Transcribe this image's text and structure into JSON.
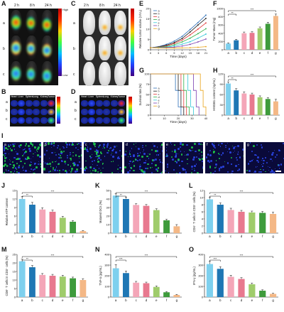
{
  "panels": {
    "A": "A",
    "B": "B",
    "C": "C",
    "D": "D",
    "E": "E",
    "F": "F",
    "G": "G",
    "H": "H",
    "I": "I",
    "J": "J",
    "K": "K",
    "L": "L",
    "M": "M",
    "N": "N",
    "O": "O"
  },
  "imaging": {
    "times": [
      "2 h",
      "8 h",
      "24 h"
    ],
    "rows": [
      "a",
      "b",
      "c"
    ],
    "high": "High",
    "low": "Low",
    "organs": [
      "Heart",
      "Liver",
      "Spleen",
      "Lung",
      "Kidney",
      "Tumor"
    ]
  },
  "fluo_labels": [
    "a",
    "b",
    "c",
    "d",
    "e",
    "f",
    "g"
  ],
  "colors": {
    "a": "#2e6fb7",
    "b": "#1a1a1a",
    "c": "#e23b3b",
    "d": "#2fb14a",
    "e": "#33c7d6",
    "f": "#7b3fb0",
    "g": "#e8a317"
  },
  "bar_colors": [
    "#7ed0ee",
    "#1f77b4",
    "#f4a6b8",
    "#e8798f",
    "#9fcc6b",
    "#3e9b3c",
    "#f4b886"
  ],
  "chart_data": [
    {
      "id": "E",
      "type": "line",
      "xlabel": "Time (days)",
      "ylabel": "Relative tumor volume (V/V₀)",
      "x": [
        0,
        3,
        6,
        9,
        12,
        15,
        18,
        21
      ],
      "xticks": [
        0,
        3,
        6,
        9,
        12,
        15,
        18,
        21
      ],
      "ylim": [
        0,
        20
      ],
      "yticks": [
        0,
        5,
        10,
        15,
        20
      ],
      "series": [
        {
          "name": "a",
          "values": [
            1,
            1.5,
            2.6,
            4.2,
            6.5,
            9.8,
            13.2,
            16.8
          ]
        },
        {
          "name": "b",
          "values": [
            1,
            1.4,
            2.2,
            3.5,
            5.5,
            8.6,
            12.0,
            15.2
          ]
        },
        {
          "name": "c",
          "values": [
            1,
            1.3,
            1.9,
            3.0,
            4.7,
            7.2,
            10.0,
            13.0
          ]
        },
        {
          "name": "d",
          "values": [
            1,
            1.2,
            1.6,
            2.4,
            3.8,
            5.6,
            7.8,
            10.2
          ]
        },
        {
          "name": "e",
          "values": [
            1,
            1.1,
            1.3,
            1.8,
            2.7,
            3.9,
            5.6,
            7.6
          ]
        },
        {
          "name": "f",
          "values": [
            1,
            1.0,
            1.1,
            1.3,
            1.8,
            2.6,
            3.8,
            5.2
          ]
        },
        {
          "name": "g",
          "values": [
            1,
            0.9,
            0.8,
            0.8,
            0.9,
            1.0,
            1.2,
            1.5
          ]
        }
      ]
    },
    {
      "id": "F",
      "type": "bar",
      "ylabel": "Tumor Mass (mg)",
      "categories": [
        "a",
        "b",
        "c",
        "d",
        "e",
        "f",
        "g"
      ],
      "values": [
        150,
        230,
        400,
        410,
        520,
        630,
        820
      ],
      "errors": [
        18,
        22,
        30,
        28,
        32,
        38,
        45
      ],
      "ylim": [
        0,
        1000
      ],
      "yticks": [
        0,
        200,
        400,
        600,
        800,
        1000
      ],
      "sig": [
        "**",
        "***"
      ]
    },
    {
      "id": "G",
      "type": "line",
      "xlabel": "Time (days)",
      "ylabel": "Survival rate (%)",
      "xlim": [
        0,
        40
      ],
      "xticks": [
        0,
        10,
        20,
        30,
        40
      ],
      "ylim": [
        0,
        100
      ],
      "yticks": [
        0,
        25,
        50,
        75,
        100
      ],
      "series": [
        {
          "name": "a",
          "drop": 18
        },
        {
          "name": "b",
          "drop": 20
        },
        {
          "name": "c",
          "drop": 22
        },
        {
          "name": "d",
          "drop": 24
        },
        {
          "name": "e",
          "drop": 27
        },
        {
          "name": "f",
          "drop": 31
        },
        {
          "name": "g",
          "drop": 36
        }
      ]
    },
    {
      "id": "H",
      "type": "bar",
      "ylabel": "HMGB1 content (ng/mL)",
      "categories": [
        "a",
        "b",
        "c",
        "d",
        "e",
        "f",
        "g"
      ],
      "values": [
        92,
        72,
        63,
        60,
        52,
        47,
        40
      ],
      "errors": [
        5,
        5,
        5,
        4,
        4,
        4,
        6
      ],
      "ylim": [
        0,
        120
      ],
      "yticks": [
        0,
        30,
        60,
        90,
        120
      ],
      "sig": [
        "**",
        "***"
      ]
    },
    {
      "id": "J",
      "type": "bar",
      "ylabel": "Relative ATP content",
      "categories": [
        "a",
        "b",
        "c",
        "d",
        "e",
        "f",
        "g"
      ],
      "values": [
        12,
        10,
        8.3,
        7.5,
        5.4,
        4.0,
        0.7
      ],
      "errors": [
        0.8,
        0.8,
        0.6,
        0.6,
        0.5,
        0.4,
        0.2
      ],
      "ylim": [
        0,
        15
      ],
      "yticks": [
        0,
        3,
        6,
        9,
        12,
        15
      ],
      "sig": [
        "**",
        "***"
      ]
    },
    {
      "id": "K",
      "type": "bar",
      "ylabel": "Matured DCs (%)",
      "categories": [
        "a",
        "b",
        "c",
        "d",
        "e",
        "f",
        "g"
      ],
      "values": [
        44,
        40,
        33,
        32,
        27,
        15,
        8
      ],
      "errors": [
        2,
        2,
        1.5,
        1.5,
        1.5,
        1.2,
        2
      ],
      "ylim": [
        0,
        50
      ],
      "yticks": [
        0,
        10,
        20,
        30,
        40,
        50
      ],
      "sig": [
        "**",
        "***"
      ]
    },
    {
      "id": "L",
      "type": "bar",
      "ylabel": "CD4⁺ T cells in CD3⁺ cells (%)",
      "categories": [
        "a",
        "b",
        "c",
        "d",
        "e",
        "f",
        "g"
      ],
      "values": [
        9.5,
        8.0,
        6.5,
        6.0,
        5.8,
        5.7,
        5.4
      ],
      "errors": [
        0.6,
        0.5,
        0.5,
        0.4,
        0.4,
        0.4,
        0.5
      ],
      "ylim": [
        0,
        12
      ],
      "yticks": [
        0,
        2,
        4,
        6,
        8,
        10,
        12
      ],
      "sig": [
        "**",
        "***"
      ]
    },
    {
      "id": "M",
      "type": "bar",
      "ylabel": "CD8⁺ T cells in CD3⁺ cells (%)",
      "categories": [
        "a",
        "b",
        "c",
        "d",
        "e",
        "f",
        "g"
      ],
      "values": [
        21,
        17.5,
        13,
        12.5,
        12,
        11,
        10
      ],
      "errors": [
        1.2,
        1,
        0.8,
        0.8,
        0.8,
        0.7,
        0.8
      ],
      "ylim": [
        0,
        25
      ],
      "yticks": [
        0,
        5,
        10,
        15,
        20,
        25
      ],
      "sig": [
        "**",
        "***"
      ]
    },
    {
      "id": "N",
      "type": "bar",
      "ylabel": "TNF-α (pg/mL)",
      "categories": [
        "a",
        "b",
        "c",
        "d",
        "e",
        "f",
        "g"
      ],
      "values": [
        270,
        225,
        135,
        130,
        95,
        45,
        20
      ],
      "errors": [
        35,
        20,
        12,
        10,
        10,
        6,
        5
      ],
      "ylim": [
        0,
        400
      ],
      "yticks": [
        0,
        100,
        200,
        300,
        400
      ],
      "sig": [
        "***",
        "***"
      ]
    },
    {
      "id": "O",
      "type": "bar",
      "ylabel": "IFN-γ (pg/mL)",
      "categories": [
        "a",
        "b",
        "c",
        "d",
        "e",
        "f",
        "g"
      ],
      "values": [
        310,
        265,
        190,
        170,
        120,
        60,
        30
      ],
      "errors": [
        25,
        20,
        15,
        12,
        12,
        8,
        6
      ],
      "ylim": [
        0,
        400
      ],
      "yticks": [
        0,
        100,
        200,
        300,
        400
      ],
      "sig": [
        "***",
        "***"
      ]
    }
  ]
}
